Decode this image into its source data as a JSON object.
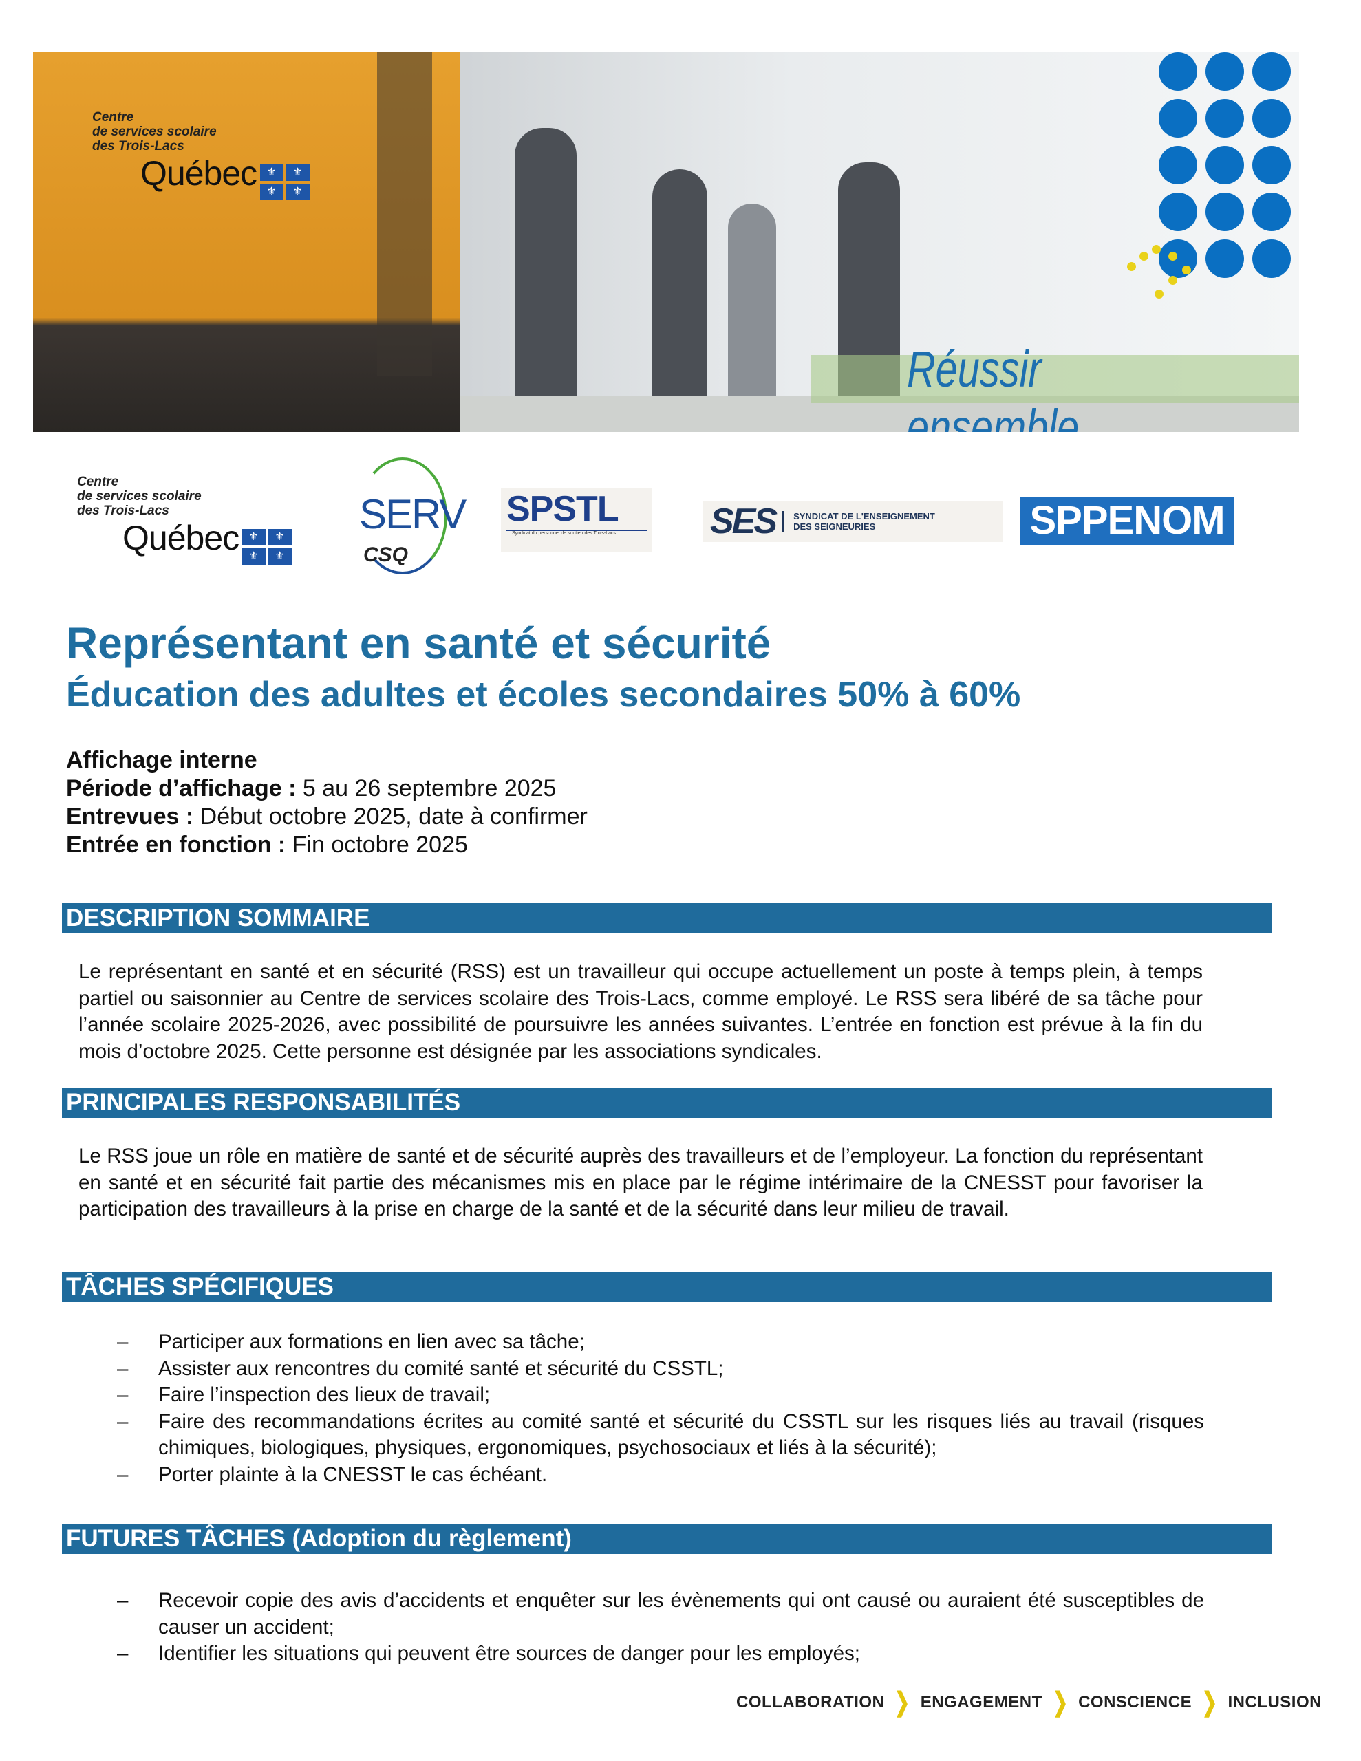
{
  "banner": {
    "org_lines": [
      "Centre",
      "de services scolaire",
      "des Trois-Lacs"
    ],
    "quebec": "Québec",
    "slogan": "Réussir ensemble"
  },
  "partners": {
    "csstl_lines": [
      "Centre",
      "de services scolaire",
      "des Trois-Lacs"
    ],
    "quebec": "Québec",
    "serv": "SERV",
    "csq": "CSQ",
    "spstl": "SPSTL",
    "spstl_sub": "Syndicat du personnel de soutien des Trois-Lacs",
    "ses": "SES",
    "ses_name": [
      "SYNDICAT DE L'ENSEIGNEMENT",
      "DES SEIGNEURIES"
    ],
    "sppenom": "SPPENOM"
  },
  "title": "Représentant en santé et sécurité",
  "subtitle": "Éducation des adultes et écoles secondaires 50% à 60%",
  "info": {
    "affichage": "Affichage interne",
    "periode_label": "Période d’affichage :",
    "periode_value": " 5 au 26 septembre 2025",
    "entrevues_label": "Entrevues :",
    "entrevues_value": " Début octobre 2025, date à confirmer",
    "entree_label": "Entrée en fonction :",
    "entree_value": " Fin octobre 2025"
  },
  "sections": {
    "description": {
      "heading": "DESCRIPTION SOMMAIRE",
      "text": "Le représentant en santé et en sécurité (RSS) est un travailleur qui occupe actuellement un poste à temps plein, à temps partiel ou saisonnier au Centre de services scolaire des Trois-Lacs, comme employé. Le RSS sera libéré de sa tâche pour l’année scolaire 2025-2026, avec possibilité de poursuivre les années suivantes. L’entrée en fonction est prévue à la fin du mois d’octobre 2025. Cette personne est désignée par les associations syndicales."
    },
    "responsabilites": {
      "heading": "PRINCIPALES RESPONSABILITÉS",
      "text": "Le RSS joue un rôle en matière de santé et de sécurité auprès des travailleurs et de l’employeur. La fonction du représentant en santé et en sécurité fait partie des mécanismes mis en place par le régime intérimaire de la CNESST pour favoriser la participation des travailleurs à la prise en charge de la santé et de la sécurité dans leur milieu de travail."
    },
    "taches": {
      "heading": "TÂCHES SPÉCIFIQUES",
      "items": [
        "Participer aux formations en lien avec sa tâche;",
        "Assister aux rencontres du comité santé et sécurité du CSSTL;",
        "Faire l’inspection des lieux de travail;",
        "Faire des recommandations écrites au comité santé et sécurité du CSSTL sur les risques liés au travail (risques chimiques, biologiques, physiques, ergonomiques, psychosociaux et liés à la sécurité);",
        "Porter plainte à la CNESST le cas échéant."
      ]
    },
    "futures": {
      "heading": "FUTURES TÂCHES (Adoption du règlement)",
      "items": [
        "Recevoir copie des avis d’accidents et enquêter sur les évènements qui ont causé ou auraient été susceptibles de causer un accident;",
        "Identifier les situations qui peuvent être sources de danger pour les employés;"
      ]
    }
  },
  "bullet": "–",
  "footer": {
    "values": [
      "COLLABORATION",
      "ENGAGEMENT",
      "CONSCIENCE",
      "INCLUSION"
    ]
  },
  "colors": {
    "heading_blue": "#1f6ea0",
    "bar_blue": "#1f6b9c",
    "dot_blue": "#0a6fc2",
    "chevron_yellow": "#e3c60d"
  }
}
